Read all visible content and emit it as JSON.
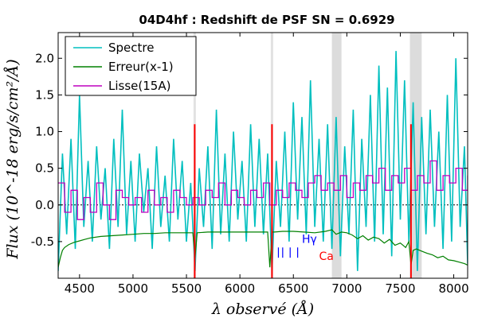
{
  "chart_data": {
    "type": "line",
    "title": "04D4hf : Redshift de PSF SN = 0.6929",
    "xlabel": "λ observé (Å)",
    "ylabel": "Flux (10^-18 erg/s/cm²/Å)",
    "xlim": [
      4300,
      8130
    ],
    "ylim": [
      -1.0,
      2.35
    ],
    "xticks": [
      "4500",
      "5000",
      "5500",
      "6000",
      "6500",
      "7000",
      "7500",
      "8000"
    ],
    "yticks": [
      "-0.5",
      "0.0",
      "0.5",
      "1.0",
      "1.5",
      "2.0"
    ],
    "legend": {
      "placement": "top-left",
      "entries": [
        {
          "label": "Spectre",
          "color": "#00bfbf"
        },
        {
          "label": "Erreur(x-1)",
          "color": "#008000"
        },
        {
          "label": "Lisse(15A)",
          "color": "#bf00bf"
        }
      ]
    },
    "series": [
      {
        "name": "Spectre",
        "color": "#00bfbf",
        "x": [
          4300,
          4340,
          4380,
          4420,
          4460,
          4500,
          4540,
          4580,
          4620,
          4660,
          4700,
          4740,
          4780,
          4820,
          4860,
          4900,
          4940,
          4980,
          5020,
          5060,
          5100,
          5140,
          5180,
          5220,
          5260,
          5300,
          5340,
          5380,
          5420,
          5460,
          5500,
          5540,
          5580,
          5620,
          5660,
          5700,
          5740,
          5780,
          5820,
          5860,
          5900,
          5940,
          5980,
          6020,
          6060,
          6100,
          6140,
          6180,
          6220,
          6260,
          6300,
          6340,
          6380,
          6420,
          6460,
          6500,
          6540,
          6580,
          6620,
          6660,
          6700,
          6740,
          6780,
          6820,
          6860,
          6900,
          6940,
          6980,
          7020,
          7060,
          7100,
          7140,
          7180,
          7220,
          7260,
          7300,
          7340,
          7380,
          7420,
          7460,
          7500,
          7540,
          7580,
          7620,
          7660,
          7700,
          7740,
          7780,
          7820,
          7860,
          7900,
          7940,
          7980,
          8020,
          8060,
          8100,
          8130
        ],
        "y": [
          -0.9,
          0.7,
          -0.4,
          0.9,
          -0.6,
          1.5,
          -0.3,
          0.6,
          -0.5,
          0.8,
          -0.2,
          0.5,
          -0.6,
          0.9,
          -0.3,
          1.3,
          -0.4,
          0.6,
          -0.5,
          0.7,
          -0.1,
          0.5,
          -0.6,
          0.8,
          -0.3,
          0.4,
          -0.5,
          0.9,
          -0.2,
          0.6,
          -0.5,
          0.3,
          -0.9,
          0.5,
          -0.3,
          0.8,
          -0.6,
          1.3,
          -0.4,
          0.7,
          -0.5,
          1.0,
          -0.2,
          0.6,
          -0.5,
          1.1,
          -0.3,
          0.9,
          -0.4,
          0.7,
          -0.9,
          0.6,
          -0.3,
          1.0,
          -0.5,
          1.4,
          -0.2,
          1.2,
          -0.4,
          1.7,
          -0.3,
          0.9,
          -0.5,
          1.1,
          -0.6,
          1.2,
          -0.7,
          0.8,
          -0.4,
          1.3,
          -0.9,
          0.9,
          -0.3,
          1.5,
          -0.5,
          1.9,
          -0.4,
          1.6,
          -0.7,
          2.1,
          -0.2,
          1.7,
          -0.5,
          1.4,
          -0.9,
          1.2,
          -0.4,
          1.3,
          -0.3,
          1.0,
          -0.6,
          1.5,
          -0.5,
          2.0,
          -0.3,
          0.8,
          -0.8
        ]
      },
      {
        "name": "Erreur(x-1)",
        "color": "#008000",
        "x": [
          4300,
          4320,
          4340,
          4360,
          4400,
          4450,
          4500,
          4550,
          4600,
          4700,
          4800,
          4900,
          5000,
          5100,
          5200,
          5300,
          5400,
          5500,
          5560,
          5580,
          5600,
          5700,
          5800,
          5900,
          6000,
          6100,
          6200,
          6260,
          6280,
          6300,
          6320,
          6400,
          6500,
          6600,
          6700,
          6800,
          6860,
          6900,
          6950,
          7000,
          7050,
          7100,
          7150,
          7200,
          7250,
          7300,
          7350,
          7400,
          7450,
          7500,
          7550,
          7580,
          7600,
          7620,
          7650,
          7700,
          7750,
          7800,
          7850,
          7900,
          7950,
          8000,
          8050,
          8100,
          8130
        ],
        "y": [
          -0.85,
          -0.72,
          -0.62,
          -0.58,
          -0.54,
          -0.51,
          -0.49,
          -0.47,
          -0.45,
          -0.43,
          -0.42,
          -0.41,
          -0.4,
          -0.39,
          -0.39,
          -0.38,
          -0.38,
          -0.38,
          -0.38,
          -0.72,
          -0.38,
          -0.37,
          -0.37,
          -0.37,
          -0.37,
          -0.37,
          -0.37,
          -0.37,
          -0.85,
          -0.37,
          -0.37,
          -0.36,
          -0.36,
          -0.37,
          -0.38,
          -0.36,
          -0.34,
          -0.4,
          -0.37,
          -0.38,
          -0.41,
          -0.46,
          -0.42,
          -0.48,
          -0.44,
          -0.46,
          -0.52,
          -0.47,
          -0.55,
          -0.52,
          -0.58,
          -0.5,
          -0.82,
          -0.62,
          -0.6,
          -0.63,
          -0.66,
          -0.68,
          -0.72,
          -0.7,
          -0.75,
          -0.76,
          -0.78,
          -0.8,
          -0.82
        ]
      },
      {
        "name": "Lisse(15A)",
        "color": "#bf00bf",
        "x": [
          4300,
          4360,
          4420,
          4480,
          4540,
          4600,
          4660,
          4720,
          4780,
          4840,
          4900,
          4960,
          5020,
          5080,
          5140,
          5200,
          5260,
          5320,
          5380,
          5440,
          5500,
          5560,
          5620,
          5680,
          5740,
          5800,
          5860,
          5920,
          5980,
          6040,
          6100,
          6160,
          6220,
          6280,
          6340,
          6400,
          6460,
          6520,
          6580,
          6640,
          6700,
          6760,
          6820,
          6880,
          6940,
          7000,
          7060,
          7120,
          7180,
          7240,
          7300,
          7360,
          7420,
          7480,
          7540,
          7600,
          7660,
          7720,
          7780,
          7840,
          7900,
          7960,
          8020,
          8080,
          8130
        ],
        "y": [
          0.3,
          -0.1,
          0.2,
          -0.2,
          0.1,
          -0.1,
          0.3,
          0.0,
          -0.2,
          0.2,
          0.1,
          0.0,
          0.1,
          -0.1,
          0.2,
          0.0,
          0.1,
          -0.1,
          0.2,
          0.1,
          0.0,
          0.1,
          0.0,
          0.2,
          0.1,
          0.3,
          0.0,
          0.2,
          0.1,
          0.0,
          0.2,
          0.1,
          0.3,
          0.0,
          0.2,
          0.1,
          0.3,
          0.2,
          0.1,
          0.3,
          0.4,
          0.2,
          0.3,
          0.2,
          0.4,
          0.1,
          0.3,
          0.2,
          0.4,
          0.3,
          0.5,
          0.2,
          0.4,
          0.3,
          0.5,
          0.2,
          0.4,
          0.3,
          0.6,
          0.2,
          0.4,
          0.3,
          0.5,
          0.2,
          0.4
        ]
      }
    ],
    "sky_lines": [
      5577,
      6300,
      7600
    ],
    "telluric_bands": [
      [
        6860,
        6950
      ],
      [
        7590,
        7700
      ]
    ],
    "grey_lines": [
      5577,
      6300
    ],
    "ticks_blue": [
      6360,
      6400,
      6470,
      6540
    ],
    "annotations": [
      {
        "text": "Hγ",
        "x": 6580,
        "y": -0.52,
        "color": "#0000ff"
      },
      {
        "text": "Ca",
        "x": 6740,
        "y": -0.75,
        "color": "#ff0000"
      }
    ],
    "zero_line": true
  }
}
